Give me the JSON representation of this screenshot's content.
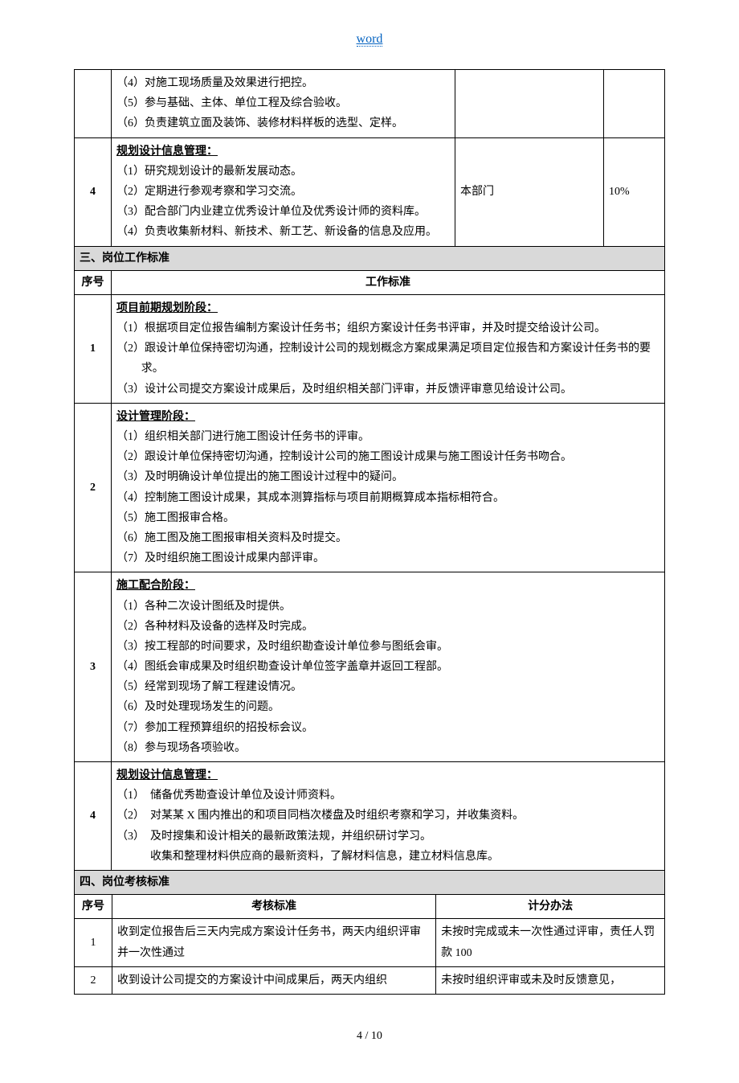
{
  "header": {
    "linkText": "word",
    "linkColor": "#0563c1"
  },
  "colors": {
    "sectionBg": "#d9d9d9",
    "border": "#000000",
    "text": "#000000",
    "background": "#ffffff"
  },
  "topTable": {
    "rowPartial": {
      "lines": [
        "（4）对施工现场质量及效果进行把控。",
        "（5）参与基础、主体、单位工程及综合验收。",
        "（6）负责建筑立面及装饰、装修材料样板的选型、定样。"
      ]
    },
    "row4": {
      "num": "4",
      "title": "规划设计信息管理：",
      "lines": [
        "（1）研究规划设计的最新发展动态。",
        "（2）定期进行参观考察和学习交流。",
        "（3）配合部门内业建立优秀设计单位及优秀设计师的资料库。",
        "（4）负责收集新材料、新技术、新工艺、新设备的信息及应用。"
      ],
      "dept": "本部门",
      "pct": "10%"
    }
  },
  "section3": {
    "title": "三、岗位工作标准",
    "headers": {
      "num": "序号",
      "std": "工作标准"
    },
    "rows": [
      {
        "num": "1",
        "title": "项目前期规划阶段：",
        "lines": [
          "（1）根据项目定位报告编制方案设计任务书；组织方案设计任务书评审，并及时提交给设计公司。",
          "（2）跟设计单位保持密切沟通，控制设计公司的规划概念方案成果满足项目定位报告和方案设计任务书的要求。",
          "（3）设计公司提交方案设计成果后，及时组织相关部门评审，并反馈评审意见给设计公司。"
        ]
      },
      {
        "num": "2",
        "title": "设计管理阶段：",
        "lines": [
          "（1）组织相关部门进行施工图设计任务书的评审。",
          "（2）跟设计单位保持密切沟通，控制设计公司的施工图设计成果与施工图设计任务书吻合。",
          "（3）及时明确设计单位提出的施工图设计过程中的疑问。",
          "（4）控制施工图设计成果，其成本测算指标与项目前期概算成本指标相符合。",
          "（5）施工图报审合格。",
          "（6）施工图及施工图报审相关资料及时提交。",
          "（7）及时组织施工图设计成果内部评审。"
        ]
      },
      {
        "num": "3",
        "title": "施工配合阶段：",
        "lines": [
          "（1）各种二次设计图纸及时提供。",
          "（2）各种材料及设备的选样及时完成。",
          "（3）按工程部的时间要求，及时组织勘查设计单位参与图纸会审。",
          "（4）图纸会审成果及时组织勘查设计单位签字盖章并返回工程部。",
          "（5）经常到现场了解工程建设情况。",
          "（6）及时处理现场发生的问题。",
          "（7）参加工程预算组织的招投标会议。",
          "（8）参与现场各项验收。"
        ]
      },
      {
        "num": "4",
        "title": "规划设计信息管理：",
        "lines": [
          "（1）　储备优秀勘查设计单位及设计师资料。",
          "（2）　对某某 X 围内推出的和项目同档次楼盘及时组织考察和学习，并收集资料。",
          "（3）　及时搜集和设计相关的最新政策法规，并组织研讨学习。",
          "　　　收集和整理材料供应商的最新资料，了解材料信息，建立材料信息库。"
        ]
      }
    ]
  },
  "section4": {
    "title": "四、岗位考核标准",
    "headers": {
      "num": "序号",
      "std": "考核标准",
      "score": "计分办法"
    },
    "rows": [
      {
        "num": "1",
        "std": "收到定位报告后三天内完成方案设计任务书，两天内组织评审并一次性通过",
        "score": "未按时完成或未一次性通过评审，责任人罚款 100"
      },
      {
        "num": "2",
        "std": "收到设计公司提交的方案设计中间成果后，两天内组织",
        "score": "未按时组织评审或未及时反馈意见，"
      }
    ]
  },
  "footer": {
    "page": "4 / 10"
  }
}
